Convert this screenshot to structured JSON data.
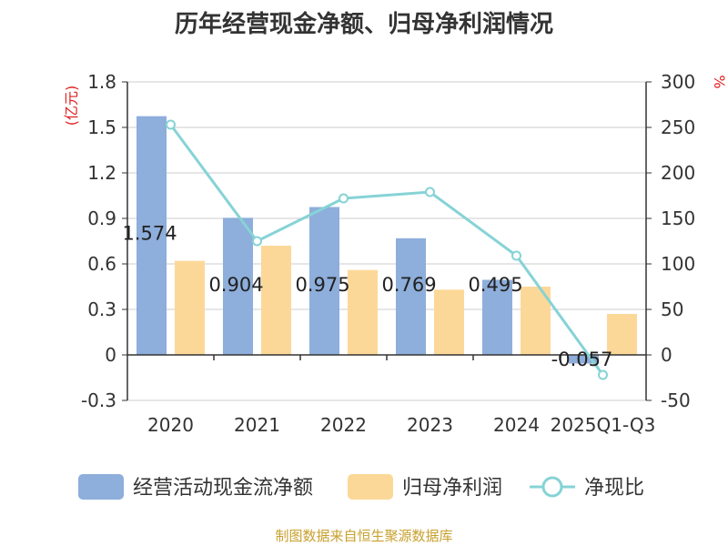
{
  "chart_data": {
    "type": "bar",
    "title": "历年经营现金净额、归母净利润情况",
    "categories": [
      "2020",
      "2021",
      "2022",
      "2023",
      "2024",
      "2025Q1-Q3"
    ],
    "y_left": {
      "unit_label": "(亿元)",
      "ylim": [
        -0.3,
        1.8
      ],
      "ticks": [
        "-0.3",
        "0",
        "0.3",
        "0.6",
        "0.9",
        "1.2",
        "1.5",
        "1.8"
      ]
    },
    "y_right": {
      "unit_label": "%",
      "ylim": [
        -50,
        300
      ],
      "ticks": [
        "-50",
        "0",
        "50",
        "100",
        "150",
        "200",
        "250",
        "300"
      ]
    },
    "series": [
      {
        "name": "经营活动现金流净额",
        "type": "bar",
        "axis": "left",
        "color": "#8eaedb",
        "values": [
          1.574,
          0.904,
          0.975,
          0.769,
          0.495,
          -0.057
        ],
        "labels": [
          "1.574",
          "0.904",
          "0.975",
          "0.769",
          "0.495",
          "-0.057"
        ]
      },
      {
        "name": "归母净利润",
        "type": "bar",
        "axis": "left",
        "color": "#fcd898",
        "values": [
          0.62,
          0.72,
          0.56,
          0.43,
          0.45,
          0.27
        ]
      },
      {
        "name": "净现比",
        "type": "line",
        "axis": "right",
        "color": "#86d3d6",
        "values": [
          253,
          125,
          172,
          179,
          109,
          -22
        ]
      }
    ],
    "grid": true,
    "legend_position": "bottom",
    "source": "制图数据来自恒生聚源数据库"
  }
}
